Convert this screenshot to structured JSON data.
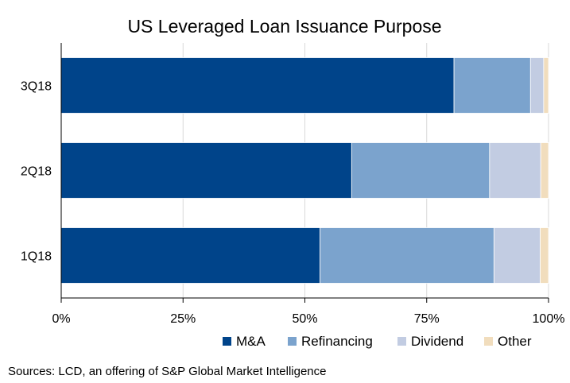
{
  "chart_data": {
    "type": "bar",
    "orientation": "horizontal",
    "stacked": "percent",
    "title": "US Leveraged Loan Issuance Purpose",
    "categories": [
      "3Q18",
      "2Q18",
      "1Q18"
    ],
    "series": [
      {
        "name": "M&A",
        "color": "#00448A",
        "values": [
          80.6,
          59.6,
          53.1
        ]
      },
      {
        "name": "Refinancing",
        "color": "#7BA3CD",
        "values": [
          15.7,
          28.3,
          35.7
        ]
      },
      {
        "name": "Dividend",
        "color": "#C2CCE2",
        "values": [
          2.7,
          10.5,
          9.5
        ]
      },
      {
        "name": "Other",
        "color": "#F1DDBD",
        "values": [
          1.0,
          1.6,
          1.7
        ]
      }
    ],
    "xlim": [
      0,
      100
    ],
    "xticks": [
      "0%",
      "25%",
      "50%",
      "75%",
      "100%"
    ],
    "grid": true,
    "legend_position": "bottom-right",
    "source": "Sources: LCD, an offering of S&P Global Market Intelligence"
  }
}
